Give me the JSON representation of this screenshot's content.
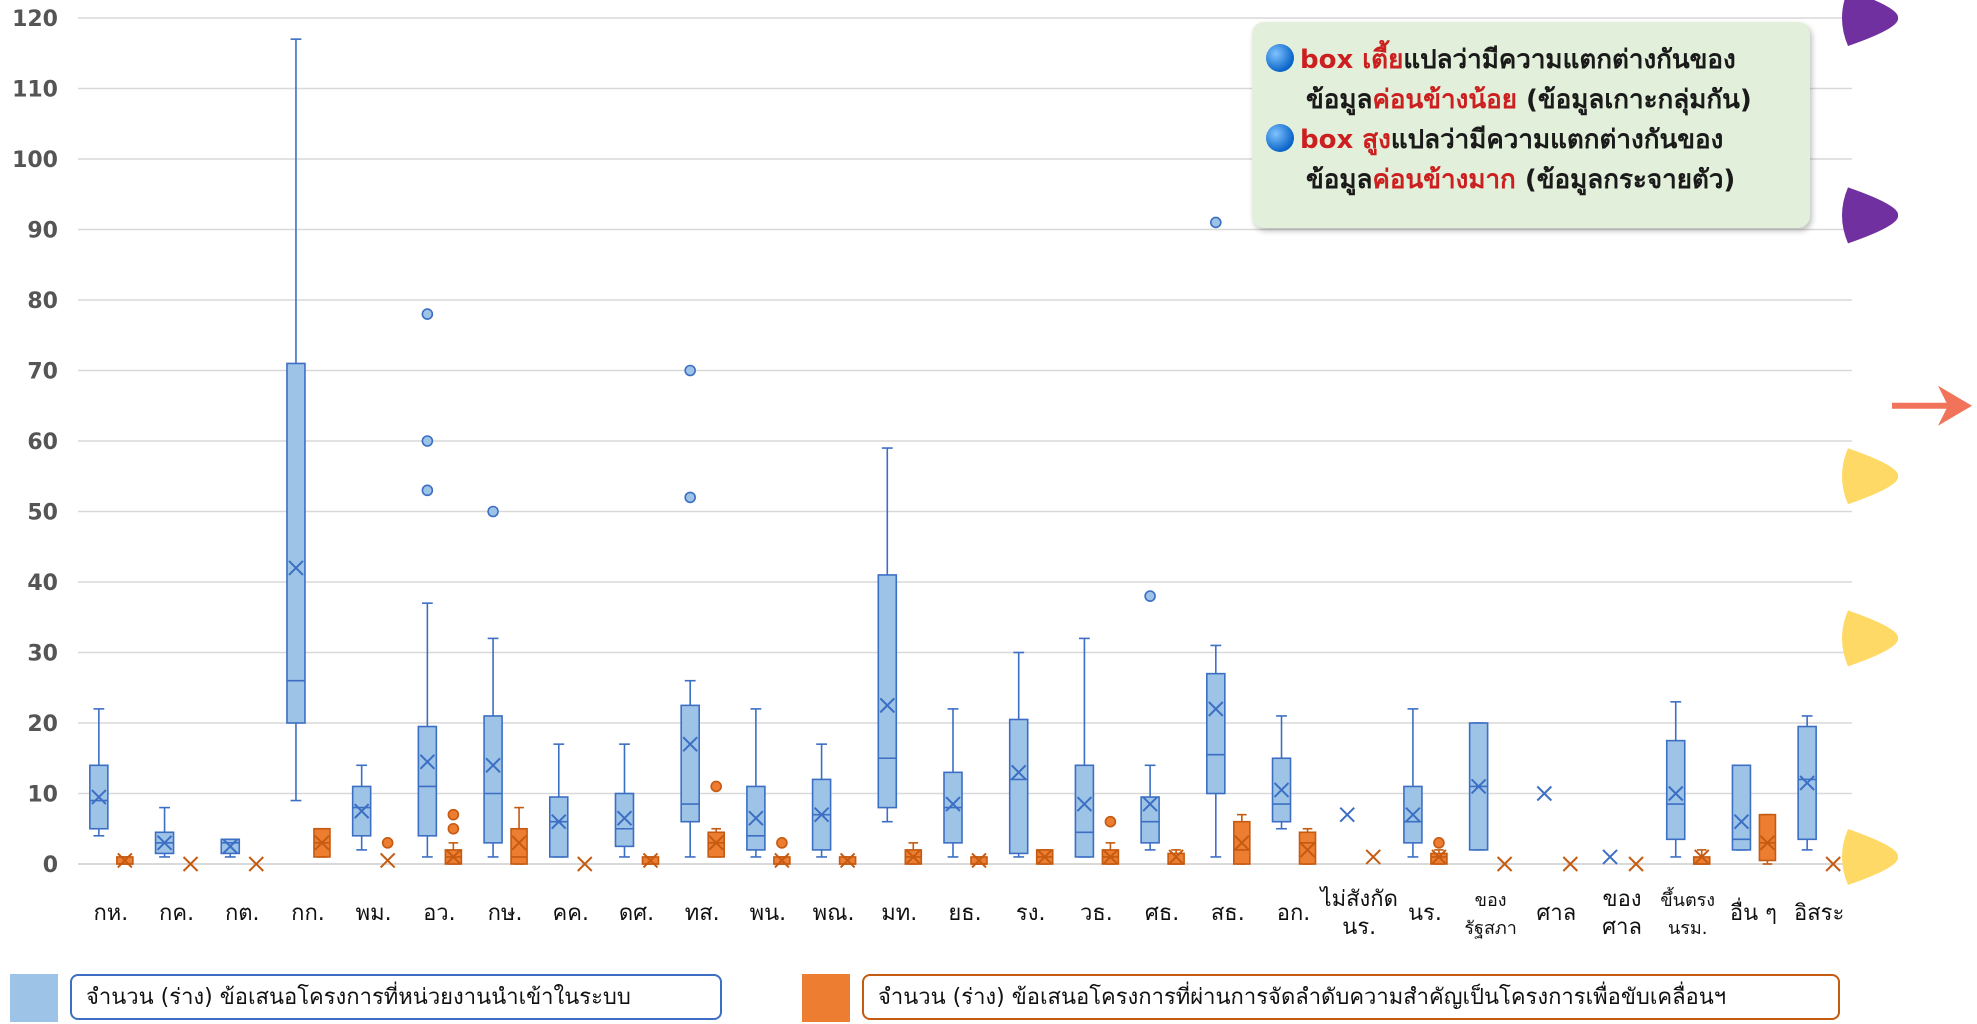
{
  "chart_data": {
    "type": "box",
    "ylim": [
      0,
      120
    ],
    "yticks": [
      0,
      10,
      20,
      30,
      40,
      50,
      60,
      70,
      80,
      90,
      100,
      110,
      120
    ],
    "categories": [
      {
        "label": "กห."
      },
      {
        "label": "กค."
      },
      {
        "label": "กต."
      },
      {
        "label": "กก."
      },
      {
        "label": "พม."
      },
      {
        "label": "อว."
      },
      {
        "label": "กษ."
      },
      {
        "label": "คค."
      },
      {
        "label": "ดศ."
      },
      {
        "label": "ทส."
      },
      {
        "label": "พน."
      },
      {
        "label": "พณ."
      },
      {
        "label": "มท."
      },
      {
        "label": "ยธ."
      },
      {
        "label": "รง."
      },
      {
        "label": "วธ."
      },
      {
        "label": "ศธ."
      },
      {
        "label": "สธ."
      },
      {
        "label": "อก."
      },
      {
        "label": "ไม่สังกัด",
        "label2": "นร."
      },
      {
        "label": "นร."
      },
      {
        "label": "ของ",
        "label2": "รัฐสภา",
        "small": true
      },
      {
        "label": "ศาล"
      },
      {
        "label": "ของ",
        "label2": "ศาล"
      },
      {
        "label": "ขึ้นตรง",
        "label2": "นรม.",
        "small": true
      },
      {
        "label": "อื่น ๆ"
      },
      {
        "label": "อิสระ"
      }
    ],
    "series": [
      {
        "name": "จำนวน (ร่าง) ข้อเสนอโครงการที่หน่วยงานนำเข้าในระบบ",
        "color": "#9dc3e6",
        "stroke": "#3c6fc4",
        "boxes": [
          {
            "min": 4,
            "q1": 5,
            "median": 9,
            "q3": 14,
            "max": 22,
            "mean": 9.5,
            "outliers": []
          },
          {
            "min": 1,
            "q1": 1.5,
            "median": 3,
            "q3": 4.5,
            "max": 8,
            "mean": 3,
            "outliers": []
          },
          {
            "min": 1,
            "q1": 1.5,
            "median": 3,
            "q3": 3.5,
            "max": 3.5,
            "mean": 2.5,
            "outliers": []
          },
          {
            "min": 9,
            "q1": 20,
            "median": 26,
            "q3": 71,
            "max": 117,
            "mean": 42,
            "outliers": []
          },
          {
            "min": 2,
            "q1": 4,
            "median": 8,
            "q3": 11,
            "max": 14,
            "mean": 7.5,
            "outliers": []
          },
          {
            "min": 1,
            "q1": 4,
            "median": 11,
            "q3": 19.5,
            "max": 37,
            "mean": 14.5,
            "outliers": [
              53,
              60,
              78
            ]
          },
          {
            "min": 1,
            "q1": 3,
            "median": 10,
            "q3": 21,
            "max": 32,
            "mean": 14,
            "outliers": [
              50
            ]
          },
          {
            "min": 1,
            "q1": 1,
            "median": 6,
            "q3": 9.5,
            "max": 17,
            "mean": 6,
            "outliers": []
          },
          {
            "min": 1,
            "q1": 2.5,
            "median": 5,
            "q3": 10,
            "max": 17,
            "mean": 6.5,
            "outliers": []
          },
          {
            "min": 1,
            "q1": 6,
            "median": 8.5,
            "q3": 22.5,
            "max": 26,
            "mean": 17,
            "outliers": [
              52,
              70
            ]
          },
          {
            "min": 1,
            "q1": 2,
            "median": 4,
            "q3": 11,
            "max": 22,
            "mean": 6.5,
            "outliers": []
          },
          {
            "min": 1,
            "q1": 2,
            "median": 7,
            "q3": 12,
            "max": 17,
            "mean": 7,
            "outliers": []
          },
          {
            "min": 6,
            "q1": 8,
            "median": 15,
            "q3": 41,
            "max": 59,
            "mean": 22.5,
            "outliers": []
          },
          {
            "min": 1,
            "q1": 3,
            "median": 8,
            "q3": 13,
            "max": 22,
            "mean": 8.5,
            "outliers": []
          },
          {
            "min": 1,
            "q1": 1.5,
            "median": 12,
            "q3": 20.5,
            "max": 30,
            "mean": 13,
            "outliers": []
          },
          {
            "min": 1,
            "q1": 1,
            "median": 4.5,
            "q3": 14,
            "max": 32,
            "mean": 8.5,
            "outliers": []
          },
          {
            "min": 2,
            "q1": 3,
            "median": 6,
            "q3": 9.5,
            "max": 14,
            "mean": 8.5,
            "outliers": [
              38
            ]
          },
          {
            "min": 1,
            "q1": 10,
            "median": 15.5,
            "q3": 27,
            "max": 31,
            "mean": 22,
            "outliers": [
              91
            ]
          },
          {
            "min": 5,
            "q1": 6,
            "median": 8.5,
            "q3": 15,
            "max": 21,
            "mean": 10.5,
            "outliers": []
          },
          {
            "mean": 7,
            "outliers": []
          },
          {
            "min": 1,
            "q1": 3,
            "median": 6,
            "q3": 11,
            "max": 22,
            "mean": 7,
            "outliers": []
          },
          {
            "min": 2,
            "q1": 2,
            "median": 11,
            "q3": 20,
            "max": 20,
            "mean": 11,
            "outliers": []
          },
          {
            "mean": 10,
            "outliers": []
          },
          {
            "mean": 1,
            "outliers": []
          },
          {
            "min": 1,
            "q1": 3.5,
            "median": 8.5,
            "q3": 17.5,
            "max": 23,
            "mean": 10,
            "outliers": []
          },
          {
            "min": 2,
            "q1": 2,
            "median": 3.5,
            "q3": 14,
            "max": 14,
            "mean": 6,
            "outliers": []
          },
          {
            "min": 2,
            "q1": 3.5,
            "median": 12,
            "q3": 19.5,
            "max": 21,
            "mean": 11.5,
            "outliers": []
          }
        ]
      },
      {
        "name": "จำนวน (ร่าง) ข้อเสนอโครงการที่ผ่านการจัดลำดับความสำคัญเป็นโครงการเพื่อขับเคลื่อนฯ",
        "color": "#ed7d31",
        "stroke": "#c55a11",
        "boxes": [
          {
            "min": 0,
            "q1": 0,
            "median": 0,
            "q3": 1,
            "max": 1,
            "mean": 0.5,
            "outliers": []
          },
          {
            "mean": 0,
            "outliers": []
          },
          {
            "mean": 0,
            "outliers": []
          },
          {
            "min": 1,
            "q1": 1,
            "median": 3,
            "q3": 5,
            "max": 5,
            "mean": 3,
            "outliers": []
          },
          {
            "mean": 0.5,
            "outliers": [
              3
            ]
          },
          {
            "min": 0,
            "q1": 0,
            "median": 1,
            "q3": 2,
            "max": 3,
            "mean": 1,
            "outliers": [
              5,
              7
            ]
          },
          {
            "min": 0,
            "q1": 0,
            "median": 1,
            "q3": 5,
            "max": 8,
            "mean": 3,
            "outliers": []
          },
          {
            "mean": 0,
            "outliers": []
          },
          {
            "min": 0,
            "q1": 0,
            "median": 0,
            "q3": 1,
            "max": 1,
            "mean": 0.5,
            "outliers": []
          },
          {
            "min": 1,
            "q1": 1,
            "median": 3,
            "q3": 4.5,
            "max": 5,
            "mean": 3,
            "outliers": [
              11
            ]
          },
          {
            "min": 0,
            "q1": 0,
            "median": 0,
            "q3": 1,
            "max": 1,
            "mean": 0.5,
            "outliers": [
              3
            ]
          },
          {
            "min": 0,
            "q1": 0,
            "median": 0,
            "q3": 1,
            "max": 1,
            "mean": 0.5,
            "outliers": []
          },
          {
            "min": 0,
            "q1": 0,
            "median": 1,
            "q3": 2,
            "max": 3,
            "mean": 1,
            "outliers": []
          },
          {
            "min": 0,
            "q1": 0,
            "median": 0,
            "q3": 1,
            "max": 1,
            "mean": 0.5,
            "outliers": []
          },
          {
            "min": 0,
            "q1": 0,
            "median": 1,
            "q3": 2,
            "max": 2,
            "mean": 1,
            "outliers": []
          },
          {
            "min": 0,
            "q1": 0,
            "median": 1,
            "q3": 2,
            "max": 3,
            "mean": 1,
            "outliers": [
              6
            ]
          },
          {
            "min": 0,
            "q1": 0,
            "median": 0,
            "q3": 1.5,
            "max": 2,
            "mean": 1,
            "outliers": []
          },
          {
            "min": 0,
            "q1": 0,
            "median": 2,
            "q3": 6,
            "max": 7,
            "mean": 3,
            "outliers": []
          },
          {
            "min": 0,
            "q1": 0,
            "median": 3,
            "q3": 4.5,
            "max": 5,
            "mean": 2,
            "outliers": []
          },
          {
            "mean": 1,
            "outliers": []
          },
          {
            "min": 0,
            "q1": 0,
            "median": 1,
            "q3": 1.5,
            "max": 2,
            "mean": 1,
            "outliers": [
              3
            ]
          },
          {
            "mean": 0,
            "outliers": []
          },
          {
            "mean": 0,
            "outliers": []
          },
          {
            "mean": 0,
            "outliers": []
          },
          {
            "min": 0,
            "q1": 0,
            "median": 0,
            "q3": 1,
            "max": 2,
            "mean": 1,
            "outliers": []
          },
          {
            "min": 0,
            "q1": 0.5,
            "median": 3,
            "q3": 7,
            "max": 7,
            "mean": 3,
            "outliers": []
          },
          {
            "mean": 0,
            "outliers": []
          }
        ]
      }
    ]
  },
  "callout": {
    "line1_a": "box เตี้ย",
    "line1_b": "แปลว่ามีความแตกต่างกันของ",
    "line2_a": "ข้อมูล",
    "line2_b": "ค่อนข้างน้อย",
    "line2_c": " (ข้อมูลเกาะกลุ่มกัน)",
    "line3_a": "box สูง",
    "line3_b": "แปลว่ามีความแตกต่างกันของ",
    "line4_a": "ข้อมูล",
    "line4_b": "ค่อนข้างมาก",
    "line4_c": " (ข้อมูลกระจายตัว)"
  },
  "decorations": {
    "markers": [
      {
        "color": "#7030a0",
        "value": 120,
        "icon": "purple-triangle-icon"
      },
      {
        "color": "#7030a0",
        "value": 92,
        "icon": "purple-triangle-icon"
      },
      {
        "color": "#ffd966",
        "value": 55,
        "icon": "yellow-triangle-icon"
      },
      {
        "color": "#ffd966",
        "value": 32,
        "icon": "yellow-triangle-icon"
      },
      {
        "color": "#ffd966",
        "value": 1,
        "icon": "yellow-triangle-icon"
      }
    ],
    "arrow": {
      "color": "#f0735a",
      "value": 65,
      "icon": "arrow-right-icon"
    }
  }
}
